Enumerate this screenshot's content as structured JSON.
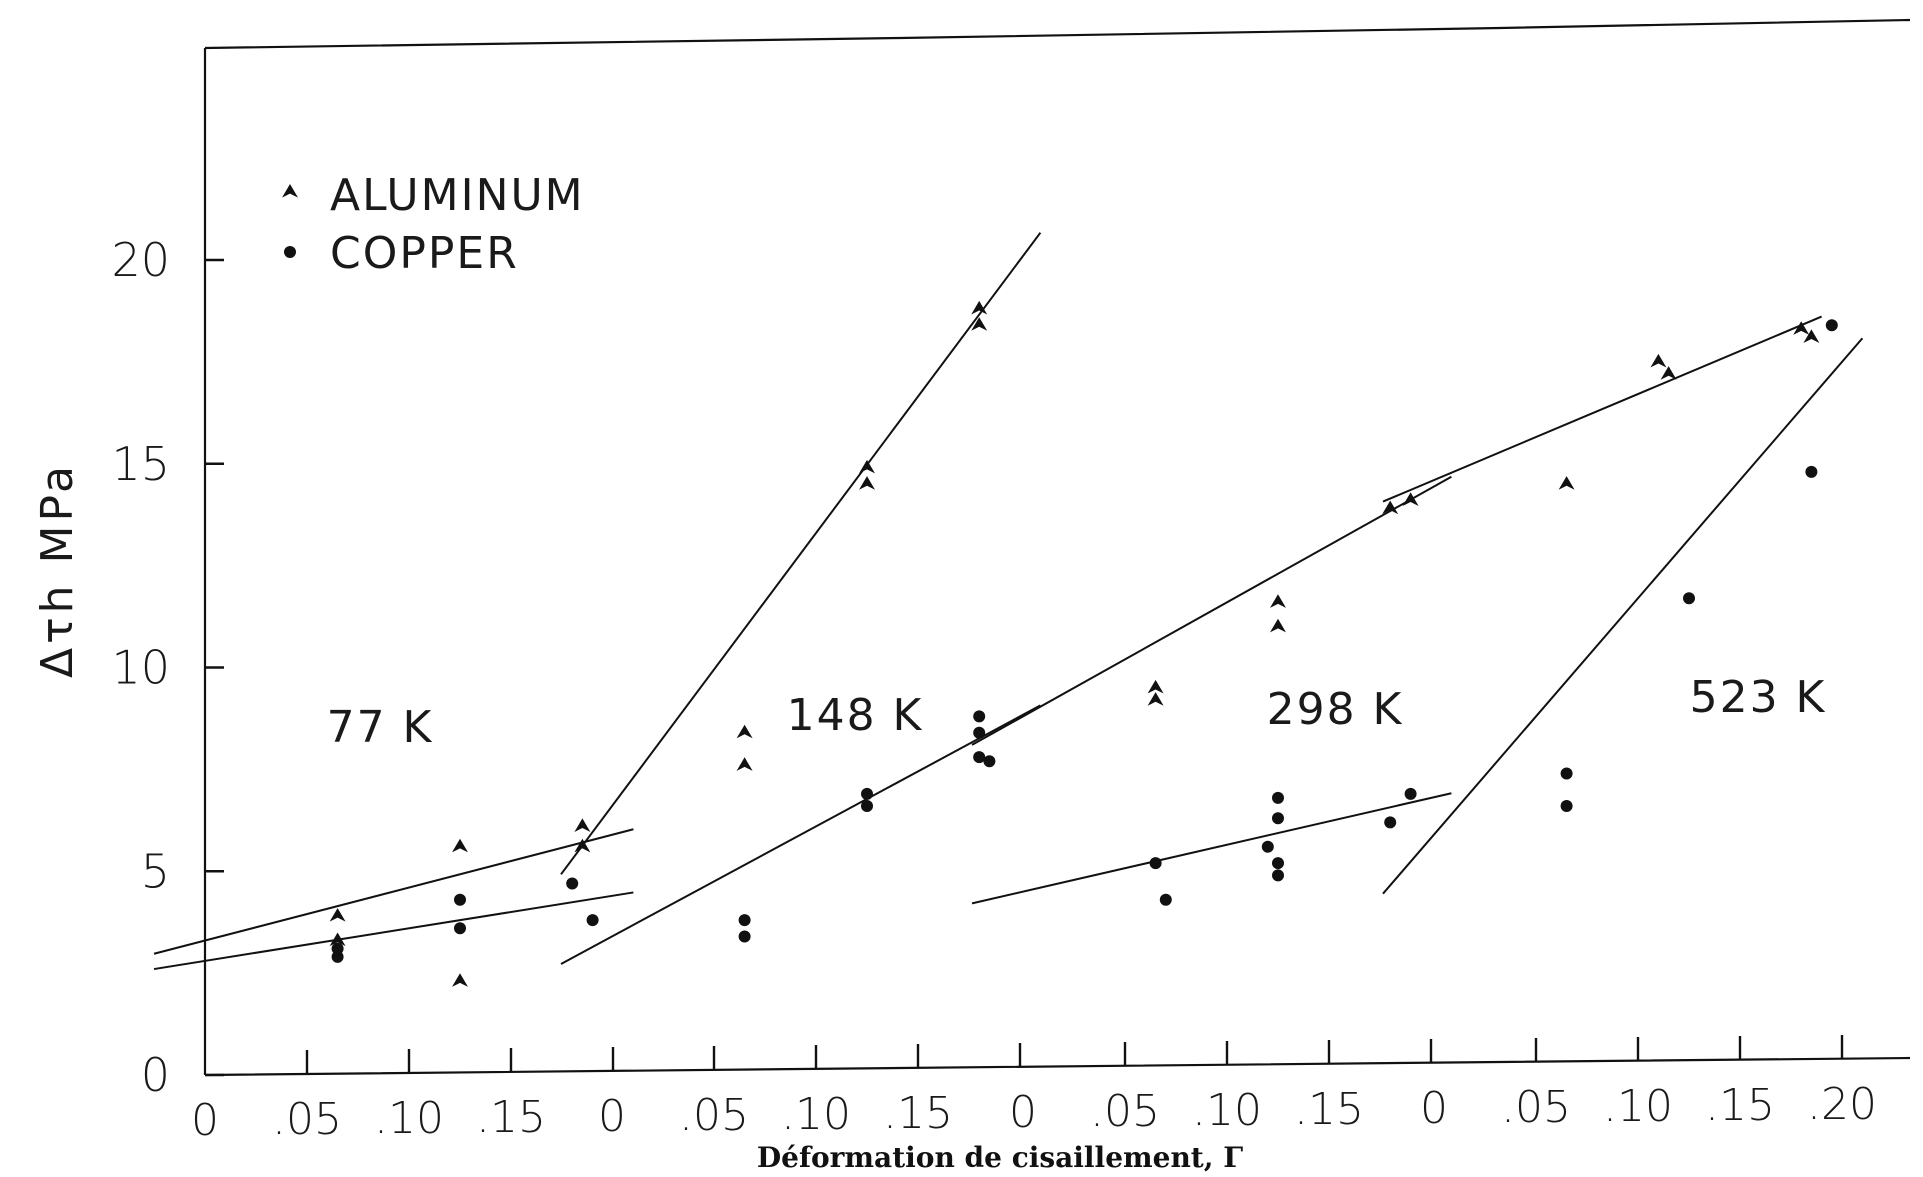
{
  "chart_data": {
    "type": "scatter",
    "ylabel": "Δτh  MPa",
    "xlabel": "Déformation de cisaillement, Γ",
    "ylim": [
      0,
      20
    ],
    "yticks": [
      "0",
      "5",
      "10",
      "15",
      "20"
    ],
    "panel_xticks": [
      "0",
      ".05",
      ".10",
      ".15"
    ],
    "last_panel_extra_tick": ".20",
    "legend": [
      {
        "name": "ALUMINUM",
        "marker": "triangle"
      },
      {
        "name": "COPPER",
        "marker": "dot"
      }
    ],
    "legend_position": "top-left",
    "panels": [
      {
        "label": "77 K",
        "aluminum": [
          [
            0.065,
            3.9
          ],
          [
            0.065,
            3.3
          ],
          [
            0.125,
            5.6
          ],
          [
            0.125,
            2.3
          ],
          [
            0.185,
            6.1
          ],
          [
            0.185,
            5.6
          ]
        ],
        "copper": [
          [
            0.065,
            2.9
          ],
          [
            0.065,
            3.1
          ],
          [
            0.125,
            4.3
          ],
          [
            0.125,
            3.6
          ],
          [
            0.18,
            4.7
          ],
          [
            0.19,
            3.8
          ]
        ],
        "aluminum_fit": [
          [
            0.0,
            3.3
          ],
          [
            0.2,
            5.9
          ]
        ],
        "copper_fit": [
          [
            0.0,
            2.8
          ],
          [
            0.2,
            4.4
          ]
        ]
      },
      {
        "label": "148 K",
        "aluminum": [
          [
            0.065,
            8.4
          ],
          [
            0.065,
            7.6
          ],
          [
            0.125,
            14.9
          ],
          [
            0.125,
            14.5
          ],
          [
            0.18,
            18.8
          ],
          [
            0.18,
            18.4
          ]
        ],
        "copper": [
          [
            0.065,
            3.8
          ],
          [
            0.065,
            3.4
          ],
          [
            0.125,
            6.9
          ],
          [
            0.125,
            6.6
          ],
          [
            0.18,
            7.8
          ],
          [
            0.18,
            8.4
          ],
          [
            0.18,
            8.8
          ],
          [
            0.185,
            7.7
          ]
        ],
        "aluminum_fit": [
          [
            0.0,
            6.6
          ],
          [
            0.2,
            20.0
          ]
        ],
        "copper_fit": [
          [
            0.0,
            3.4
          ],
          [
            0.2,
            8.8
          ]
        ]
      },
      {
        "label": "298 K",
        "aluminum": [
          [
            0.065,
            9.5
          ],
          [
            0.065,
            9.2
          ],
          [
            0.125,
            11.6
          ],
          [
            0.125,
            11.0
          ],
          [
            0.18,
            13.9
          ],
          [
            0.19,
            14.1
          ]
        ],
        "copper": [
          [
            0.065,
            5.2
          ],
          [
            0.07,
            4.3
          ],
          [
            0.125,
            6.8
          ],
          [
            0.125,
            6.3
          ],
          [
            0.12,
            5.6
          ],
          [
            0.125,
            5.2
          ],
          [
            0.125,
            4.9
          ],
          [
            0.18,
            6.2
          ],
          [
            0.19,
            6.9
          ]
        ],
        "aluminum_fit": [
          [
            0.0,
            8.8
          ],
          [
            0.2,
            14.4
          ]
        ],
        "copper_fit": [
          [
            0.0,
            4.5
          ],
          [
            0.2,
            6.8
          ]
        ]
      },
      {
        "label": "523 K",
        "aluminum": [
          [
            0.065,
            14.5
          ],
          [
            0.11,
            17.5
          ],
          [
            0.115,
            17.2
          ],
          [
            0.18,
            18.3
          ],
          [
            0.185,
            18.1
          ]
        ],
        "copper": [
          [
            0.065,
            7.4
          ],
          [
            0.065,
            6.6
          ],
          [
            0.125,
            11.7
          ],
          [
            0.185,
            14.8
          ],
          [
            0.195,
            18.4
          ]
        ],
        "aluminum_fit": [
          [
            0.0,
            14.6
          ],
          [
            0.18,
            18.4
          ]
        ],
        "copper_fit": [
          [
            0.0,
            5.9
          ],
          [
            0.2,
            17.5
          ]
        ]
      }
    ]
  }
}
